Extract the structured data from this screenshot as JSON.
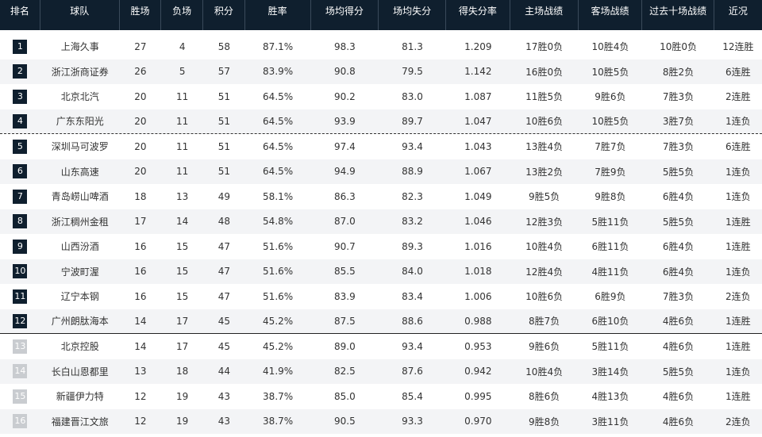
{
  "colors": {
    "header_bg": "#0f1f2e",
    "badge_in": "#0f1f2e",
    "badge_out": "#c9ccd0",
    "row_alt": "#f3f4f6"
  },
  "headers": [
    "排名",
    "球队",
    "胜场",
    "负场",
    "积分",
    "胜率",
    "场均得分",
    "场均失分",
    "得失分率",
    "主场战绩",
    "客场战绩",
    "过去十场战绩",
    "近况"
  ],
  "rows": [
    {
      "rank": "1",
      "team": "上海久事",
      "w": "27",
      "l": "4",
      "pts": "58",
      "pct": "87.1%",
      "ppg": "98.3",
      "oppg": "81.3",
      "ratio": "1.209",
      "home": "17胜0负",
      "away": "10胜4负",
      "last10": "10胜0负",
      "streak": "12连胜"
    },
    {
      "rank": "2",
      "team": "浙江浙商证券",
      "w": "26",
      "l": "5",
      "pts": "57",
      "pct": "83.9%",
      "ppg": "90.8",
      "oppg": "79.5",
      "ratio": "1.142",
      "home": "16胜0负",
      "away": "10胜5负",
      "last10": "8胜2负",
      "streak": "6连胜"
    },
    {
      "rank": "3",
      "team": "北京北汽",
      "w": "20",
      "l": "11",
      "pts": "51",
      "pct": "64.5%",
      "ppg": "90.2",
      "oppg": "83.0",
      "ratio": "1.087",
      "home": "11胜5负",
      "away": "9胜6负",
      "last10": "7胜3负",
      "streak": "2连胜"
    },
    {
      "rank": "4",
      "team": "广东东阳光",
      "w": "20",
      "l": "11",
      "pts": "51",
      "pct": "64.5%",
      "ppg": "93.9",
      "oppg": "89.7",
      "ratio": "1.047",
      "home": "10胜6负",
      "away": "10胜5负",
      "last10": "3胜7负",
      "streak": "1连负"
    },
    {
      "rank": "5",
      "team": "深圳马可波罗",
      "w": "20",
      "l": "11",
      "pts": "51",
      "pct": "64.5%",
      "ppg": "97.4",
      "oppg": "93.4",
      "ratio": "1.043",
      "home": "13胜4负",
      "away": "7胜7负",
      "last10": "7胜3负",
      "streak": "6连胜"
    },
    {
      "rank": "6",
      "team": "山东高速",
      "w": "20",
      "l": "11",
      "pts": "51",
      "pct": "64.5%",
      "ppg": "94.9",
      "oppg": "88.9",
      "ratio": "1.067",
      "home": "13胜2负",
      "away": "7胜9负",
      "last10": "5胜5负",
      "streak": "1连负"
    },
    {
      "rank": "7",
      "team": "青岛崂山啤酒",
      "w": "18",
      "l": "13",
      "pts": "49",
      "pct": "58.1%",
      "ppg": "86.3",
      "oppg": "82.3",
      "ratio": "1.049",
      "home": "9胜5负",
      "away": "9胜8负",
      "last10": "6胜4负",
      "streak": "1连负"
    },
    {
      "rank": "8",
      "team": "浙江稠州金租",
      "w": "17",
      "l": "14",
      "pts": "48",
      "pct": "54.8%",
      "ppg": "87.0",
      "oppg": "83.2",
      "ratio": "1.046",
      "home": "12胜3负",
      "away": "5胜11负",
      "last10": "5胜5负",
      "streak": "1连胜"
    },
    {
      "rank": "9",
      "team": "山西汾酒",
      "w": "16",
      "l": "15",
      "pts": "47",
      "pct": "51.6%",
      "ppg": "90.7",
      "oppg": "89.3",
      "ratio": "1.016",
      "home": "10胜4负",
      "away": "6胜11负",
      "last10": "6胜4负",
      "streak": "1连胜"
    },
    {
      "rank": "10",
      "team": "宁波町渥",
      "w": "16",
      "l": "15",
      "pts": "47",
      "pct": "51.6%",
      "ppg": "85.5",
      "oppg": "84.0",
      "ratio": "1.018",
      "home": "12胜4负",
      "away": "4胜11负",
      "last10": "6胜4负",
      "streak": "1连负"
    },
    {
      "rank": "11",
      "team": "辽宁本钢",
      "w": "16",
      "l": "15",
      "pts": "47",
      "pct": "51.6%",
      "ppg": "83.9",
      "oppg": "83.4",
      "ratio": "1.006",
      "home": "10胜6负",
      "away": "6胜9负",
      "last10": "7胜3负",
      "streak": "2连负"
    },
    {
      "rank": "12",
      "team": "广州朗肽海本",
      "w": "14",
      "l": "17",
      "pts": "45",
      "pct": "45.2%",
      "ppg": "87.5",
      "oppg": "88.6",
      "ratio": "0.988",
      "home": "8胜7负",
      "away": "6胜10负",
      "last10": "4胜6负",
      "streak": "1连胜"
    },
    {
      "rank": "13",
      "team": "北京控股",
      "w": "14",
      "l": "17",
      "pts": "45",
      "pct": "45.2%",
      "ppg": "89.0",
      "oppg": "93.4",
      "ratio": "0.953",
      "home": "9胜6负",
      "away": "5胜11负",
      "last10": "4胜6负",
      "streak": "1连胜"
    },
    {
      "rank": "14",
      "team": "长白山恩都里",
      "w": "13",
      "l": "18",
      "pts": "44",
      "pct": "41.9%",
      "ppg": "82.5",
      "oppg": "87.6",
      "ratio": "0.942",
      "home": "10胜4负",
      "away": "3胜14负",
      "last10": "5胜5负",
      "streak": "1连负"
    },
    {
      "rank": "15",
      "team": "新疆伊力特",
      "w": "12",
      "l": "19",
      "pts": "43",
      "pct": "38.7%",
      "ppg": "85.0",
      "oppg": "85.4",
      "ratio": "0.995",
      "home": "8胜6负",
      "away": "4胜13负",
      "last10": "4胜6负",
      "streak": "1连胜"
    },
    {
      "rank": "16",
      "team": "福建晋江文旅",
      "w": "12",
      "l": "19",
      "pts": "43",
      "pct": "38.7%",
      "ppg": "90.5",
      "oppg": "93.3",
      "ratio": "0.970",
      "home": "9胜8负",
      "away": "3胜11负",
      "last10": "4胜6负",
      "streak": "2连负"
    }
  ]
}
